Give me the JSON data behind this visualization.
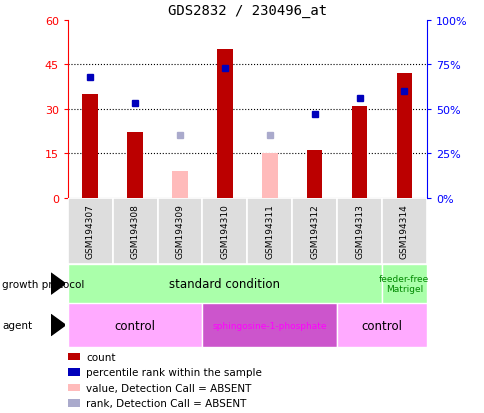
{
  "title": "GDS2832 / 230496_at",
  "samples": [
    "GSM194307",
    "GSM194308",
    "GSM194309",
    "GSM194310",
    "GSM194311",
    "GSM194312",
    "GSM194313",
    "GSM194314"
  ],
  "counts": [
    35,
    22,
    null,
    50,
    null,
    16,
    31,
    42
  ],
  "counts_absent": [
    null,
    null,
    9,
    null,
    15,
    null,
    null,
    null
  ],
  "percentile_ranks_left": [
    35,
    null,
    null,
    44,
    null,
    null,
    null,
    35
  ],
  "percentile_ranks_left_absent": [
    null,
    null,
    null,
    null,
    null,
    null,
    null,
    null
  ],
  "percentile_ranks_right": [
    68,
    53,
    null,
    73,
    null,
    47,
    56,
    60
  ],
  "percentile_ranks_right_absent": [
    null,
    null,
    35,
    null,
    35,
    null,
    null,
    null
  ],
  "ylim_left": [
    0,
    60
  ],
  "ylim_right": [
    0,
    100
  ],
  "yticks_left": [
    0,
    15,
    30,
    45,
    60
  ],
  "yticks_right": [
    0,
    25,
    50,
    75,
    100
  ],
  "ytick_labels_left": [
    "0",
    "15",
    "30",
    "45",
    "60"
  ],
  "ytick_labels_right": [
    "0%",
    "25%",
    "50%",
    "75%",
    "100%"
  ],
  "bar_color_present": "#bb0000",
  "bar_color_absent": "#ffbbbb",
  "dot_color_present": "#0000bb",
  "dot_color_absent": "#aaaacc",
  "growth_protocol_groups": [
    {
      "label": "standard condition",
      "spans": [
        0,
        6
      ],
      "color": "#aaffaa"
    },
    {
      "label": "feeder-free\nMatrigel",
      "spans": [
        7,
        7
      ],
      "color": "#aaffaa"
    }
  ],
  "agent_groups": [
    {
      "label": "control",
      "spans": [
        0,
        2
      ],
      "color": "#ffaaff"
    },
    {
      "label": "sphingosine-1-phosphate",
      "spans": [
        3,
        5
      ],
      "color": "#dd66dd"
    },
    {
      "label": "control",
      "spans": [
        6,
        7
      ],
      "color": "#ffaaff"
    }
  ],
  "legend_items": [
    {
      "label": "count",
      "color": "#bb0000"
    },
    {
      "label": "percentile rank within the sample",
      "color": "#0000bb"
    },
    {
      "label": "value, Detection Call = ABSENT",
      "color": "#ffbbbb"
    },
    {
      "label": "rank, Detection Call = ABSENT",
      "color": "#aaaacc"
    }
  ]
}
